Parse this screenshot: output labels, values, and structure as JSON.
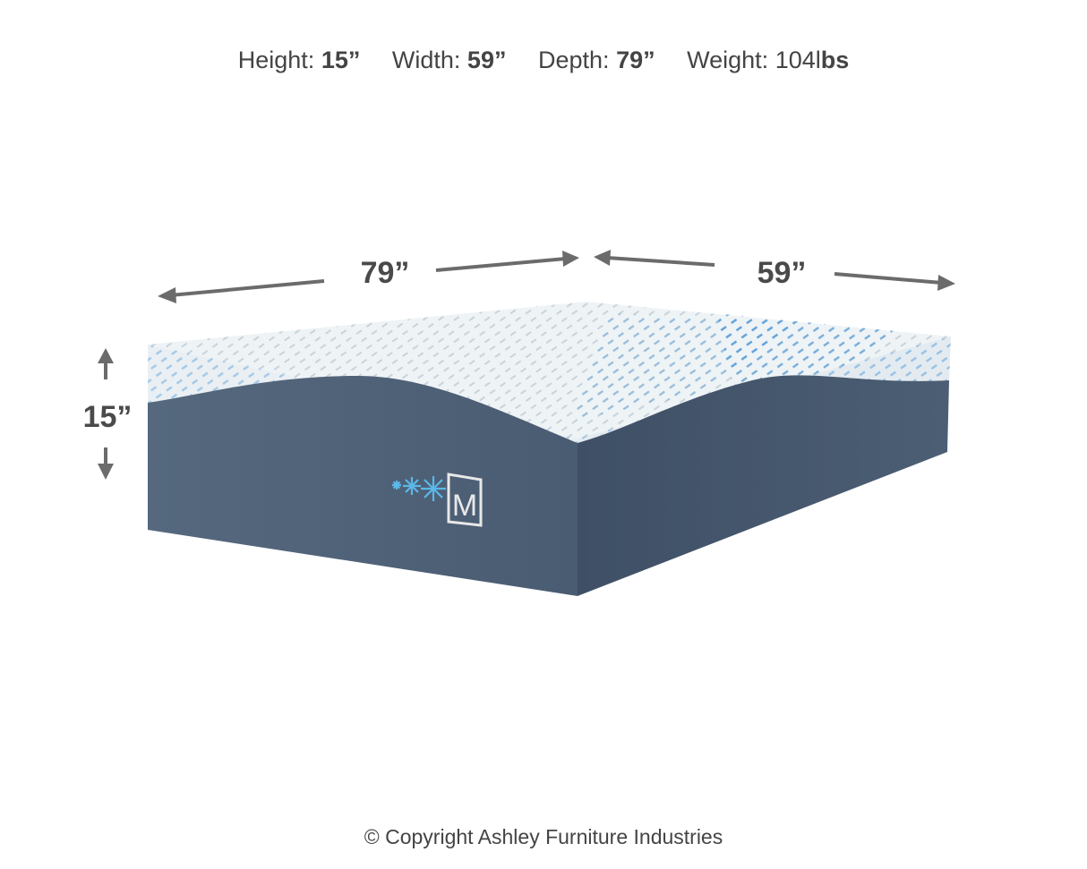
{
  "specs": [
    {
      "label": "Height:",
      "value": "15”"
    },
    {
      "label": "Width:",
      "value": "59”"
    },
    {
      "label": "Depth:",
      "value": "79”"
    },
    {
      "label": "Weight:",
      "value": "104l",
      "unit": "bs"
    }
  ],
  "dimensions": {
    "depth": "79”",
    "width": "59”",
    "height": "15”"
  },
  "logo": {
    "letter": "M"
  },
  "colors": {
    "cover": "#eef3f6",
    "cover_pattern": "#3a8fd6",
    "base": "#4b5d73",
    "arrow": "#6b6b6b",
    "snowflake": "#5bb8e8"
  },
  "copyright": "© Copyright Ashley Furniture Industries"
}
